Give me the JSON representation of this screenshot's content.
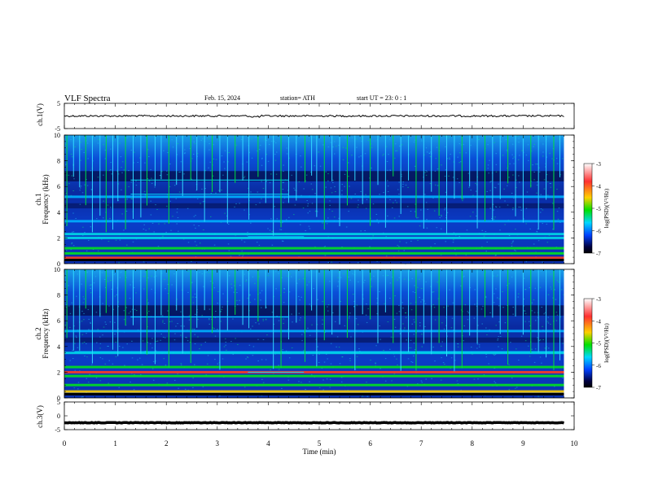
{
  "header": {
    "title": "VLF  Spectra",
    "date": "Feb. 15, 2024",
    "station": "station= ATH",
    "start": "start  UT  =    23: 0   : 1"
  },
  "colorscale": {
    "stops": [
      "#ffffff",
      "#ff3030",
      "#ffd000",
      "#00e000",
      "#00d8ff",
      "#0040ff",
      "#000040",
      "#000000"
    ],
    "background": "#0b2aa8",
    "trace_color": "#000000"
  },
  "chart_data": {
    "type": "heatmap",
    "x": {
      "label": "Time  (min)",
      "range": [
        0,
        10
      ],
      "ticks": [
        "0",
        "1",
        "2",
        "3",
        "4",
        "5",
        "6",
        "7",
        "8",
        "9",
        "10"
      ],
      "data_end": 9.8
    },
    "panels": [
      {
        "kind": "line",
        "ylabel": "ch.1(V)",
        "ylim": [
          -5,
          5
        ],
        "yticks": [
          "5",
          "-5"
        ],
        "level": 0,
        "dip_at": [
          3.65,
          3.85
        ]
      },
      {
        "kind": "spectrogram",
        "ylabel": "ch.1\nFrequency  (kHz)",
        "ylabel_line1": "ch.1",
        "ylabel_line2": "Frequency  (kHz)",
        "ylim": [
          0,
          10
        ],
        "yticks": [
          "0",
          "2",
          "4",
          "6",
          "8",
          "10"
        ],
        "colorbar": {
          "label": "log(PSD)(V²/Hz)",
          "range": [
            -7,
            -3
          ],
          "ticks": [
            "-3",
            "-4",
            "-5",
            "-6",
            "-7"
          ]
        },
        "bands": [
          {
            "f": 0.45,
            "level": 0.95
          },
          {
            "f": 0.8,
            "level": 0.7
          },
          {
            "f": 1.2,
            "level": 0.6
          },
          {
            "f": 2.0,
            "level": 0.55
          },
          {
            "f": 2.3,
            "level": 0.5
          },
          {
            "f": 3.3,
            "level": 0.35
          },
          {
            "f": 5.2,
            "level": 0.3
          }
        ],
        "segment_lines": [
          {
            "f": 5.4,
            "x0": 1.3,
            "x1": 4.4
          },
          {
            "f": 6.5,
            "x0": 1.3,
            "x1": 4.4
          },
          {
            "f": 2.1,
            "x0": 3.6,
            "x1": 4.7
          }
        ]
      },
      {
        "kind": "spectrogram",
        "ylabel": "ch.2\nFrequency  (kHz)",
        "ylabel_line1": "ch.2",
        "ylabel_line2": "Frequency  (kHz)",
        "ylim": [
          0,
          10
        ],
        "yticks": [
          "0",
          "2",
          "4",
          "6",
          "8",
          "10"
        ],
        "colorbar": {
          "label": "log(PSD)(V²/Hz)",
          "range": [
            -7,
            -3
          ],
          "ticks": [
            "-3",
            "-4",
            "-5",
            "-6",
            "-7"
          ]
        },
        "bands": [
          {
            "f": 0.5,
            "level": 0.9
          },
          {
            "f": 1.0,
            "level": 0.75
          },
          {
            "f": 1.7,
            "level": 0.7
          },
          {
            "f": 2.0,
            "level": 0.98
          },
          {
            "f": 2.4,
            "level": 0.6
          },
          {
            "f": 3.5,
            "level": 0.45
          },
          {
            "f": 5.2,
            "level": 0.3
          }
        ],
        "segment_lines": [
          {
            "f": 6.3,
            "x0": 1.3,
            "x1": 4.4
          },
          {
            "f": 3.6,
            "x0": 0.2,
            "x1": 9.8
          },
          {
            "f": 2.0,
            "x0": 3.6,
            "x1": 4.7
          }
        ]
      },
      {
        "kind": "line",
        "ylabel": "ch.3(V)",
        "ylim": [
          -5,
          5
        ],
        "yticks": [
          "5",
          "0",
          "-5"
        ],
        "level": -2.5
      }
    ],
    "sferic_times": [
      0.05,
      0.18,
      0.3,
      0.42,
      0.55,
      0.7,
      0.82,
      0.95,
      1.05,
      1.2,
      1.35,
      1.5,
      1.62,
      1.78,
      1.9,
      2.05,
      2.2,
      2.32,
      2.48,
      2.6,
      2.75,
      2.9,
      3.05,
      3.2,
      3.35,
      3.5,
      3.62,
      3.8,
      3.95,
      4.1,
      4.25,
      4.4,
      4.55,
      4.72,
      4.85,
      4.95,
      5.1,
      5.25,
      5.4,
      5.55,
      5.7,
      5.85,
      6.0,
      6.15,
      6.3,
      6.45,
      6.6,
      6.75,
      6.9,
      7.05,
      7.2,
      7.35,
      7.5,
      7.65,
      7.8,
      7.95,
      8.1,
      8.25,
      8.4,
      8.55,
      8.7,
      8.85,
      9.0,
      9.15,
      9.3,
      9.45,
      9.6,
      9.72
    ]
  }
}
